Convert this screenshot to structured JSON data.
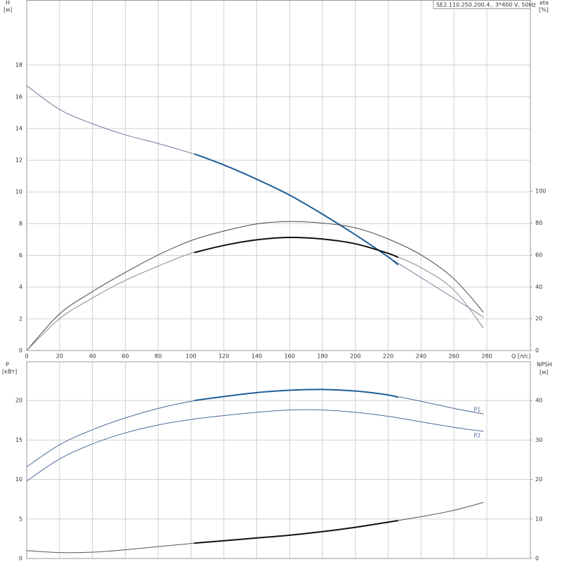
{
  "chart_data": [
    {
      "type": "line",
      "title": "SE2.110.250.200.4., 3*400 V, 50Hz",
      "ylabel": "H",
      "yunit": "[м]",
      "y2label": "eta",
      "y2unit": "[%]",
      "xlabel": "Q [л/с]",
      "xlim": [
        0,
        306.5
      ],
      "xticks": [
        0,
        20,
        40,
        60,
        80,
        100,
        120,
        140,
        160,
        180,
        200,
        220,
        240,
        260,
        280
      ],
      "ylim": [
        0,
        22.08
      ],
      "yticks": [
        0,
        2,
        4,
        6,
        8,
        10,
        12,
        14,
        16,
        18
      ],
      "y2lim": [
        0,
        219.8
      ],
      "y2ticks": [
        0,
        20,
        40,
        60,
        80,
        100
      ],
      "grid": true,
      "series": [
        {
          "color": "#6f7d9c",
          "width": 1,
          "x": [
            0,
            20,
            40,
            60,
            80,
            100,
            120,
            140,
            160,
            180,
            200,
            220,
            240,
            260,
            278
          ],
          "values": [
            16.7,
            15.2,
            14.3,
            13.6,
            13.05,
            12.45,
            11.7,
            10.8,
            9.8,
            8.6,
            7.3,
            5.9,
            4.6,
            3.3,
            2.1
          ]
        },
        {
          "color": "#1f5e96",
          "width": 2,
          "x": [
            102,
            120,
            140,
            160,
            180,
            200,
            220,
            226
          ],
          "values": [
            12.4,
            11.7,
            10.8,
            9.8,
            8.6,
            7.3,
            5.9,
            5.4
          ]
        },
        {
          "color": "#444444",
          "width": 1,
          "axis": "y2",
          "x": [
            0,
            20,
            40,
            60,
            80,
            100,
            120,
            140,
            160,
            180,
            200,
            220,
            240,
            260,
            278
          ],
          "values": [
            0,
            23,
            37,
            49,
            60,
            69,
            75,
            79.5,
            81,
            80,
            77,
            70,
            60,
            45,
            24
          ]
        },
        {
          "color": "#888888",
          "width": 1,
          "axis": "y2",
          "x": [
            0,
            20,
            40,
            60,
            80,
            100,
            120,
            140,
            160,
            180,
            200,
            220,
            240,
            260,
            278
          ],
          "values": [
            0,
            20,
            33,
            44,
            53,
            61,
            66,
            69.5,
            71,
            70,
            67,
            61,
            52,
            38,
            14
          ]
        },
        {
          "color": "#111111",
          "width": 2,
          "axis": "y2",
          "x": [
            102,
            120,
            140,
            160,
            180,
            200,
            220,
            226
          ],
          "values": [
            61.5,
            66,
            69.5,
            71,
            70,
            67,
            61,
            58.5
          ]
        }
      ]
    },
    {
      "type": "line",
      "sharex": true,
      "ylabel": "P",
      "yunit": "[кВт]",
      "y2label": "NPSH",
      "y2unit": "[м]",
      "ylim": [
        0,
        24.9
      ],
      "yticks": [
        0,
        5,
        10,
        15,
        20
      ],
      "y2lim": [
        0,
        49.8
      ],
      "y2ticks": [
        0,
        10,
        20,
        30,
        40
      ],
      "grid": true,
      "series": [
        {
          "name": "P1",
          "color": "#4a6a9a",
          "width": 1,
          "x": [
            0,
            20,
            40,
            60,
            80,
            100,
            120,
            140,
            160,
            180,
            200,
            220,
            240,
            260,
            278
          ],
          "values": [
            11.6,
            14.4,
            16.3,
            17.8,
            19.0,
            19.9,
            20.5,
            21.0,
            21.3,
            21.4,
            21.2,
            20.7,
            19.9,
            19.0,
            18.3
          ]
        },
        {
          "color": "#1f5e96",
          "width": 2,
          "x": [
            102,
            120,
            140,
            160,
            180,
            200,
            220,
            226
          ],
          "values": [
            20.0,
            20.5,
            21.0,
            21.3,
            21.4,
            21.2,
            20.7,
            20.4
          ]
        },
        {
          "name": "P2",
          "color": "#4a6a9a",
          "width": 1,
          "x": [
            0,
            20,
            40,
            60,
            80,
            100,
            120,
            140,
            160,
            180,
            200,
            220,
            240,
            260,
            278
          ],
          "values": [
            9.8,
            12.6,
            14.5,
            15.9,
            16.9,
            17.6,
            18.1,
            18.5,
            18.8,
            18.8,
            18.5,
            18.0,
            17.3,
            16.6,
            16.1
          ]
        },
        {
          "color": "#555555",
          "width": 1,
          "axis": "y2",
          "x": [
            0,
            20,
            40,
            60,
            80,
            100,
            120,
            140,
            160,
            180,
            200,
            220,
            240,
            260,
            278
          ],
          "values": [
            2.0,
            1.5,
            1.6,
            2.2,
            3.0,
            3.8,
            4.5,
            5.2,
            5.9,
            6.8,
            7.9,
            9.2,
            10.6,
            12.2,
            14.2
          ]
        },
        {
          "color": "#111111",
          "width": 2,
          "axis": "y2",
          "x": [
            102,
            120,
            140,
            160,
            180,
            200,
            220,
            226
          ],
          "values": [
            3.9,
            4.5,
            5.2,
            5.9,
            6.8,
            7.9,
            9.2,
            9.6
          ]
        }
      ]
    }
  ]
}
